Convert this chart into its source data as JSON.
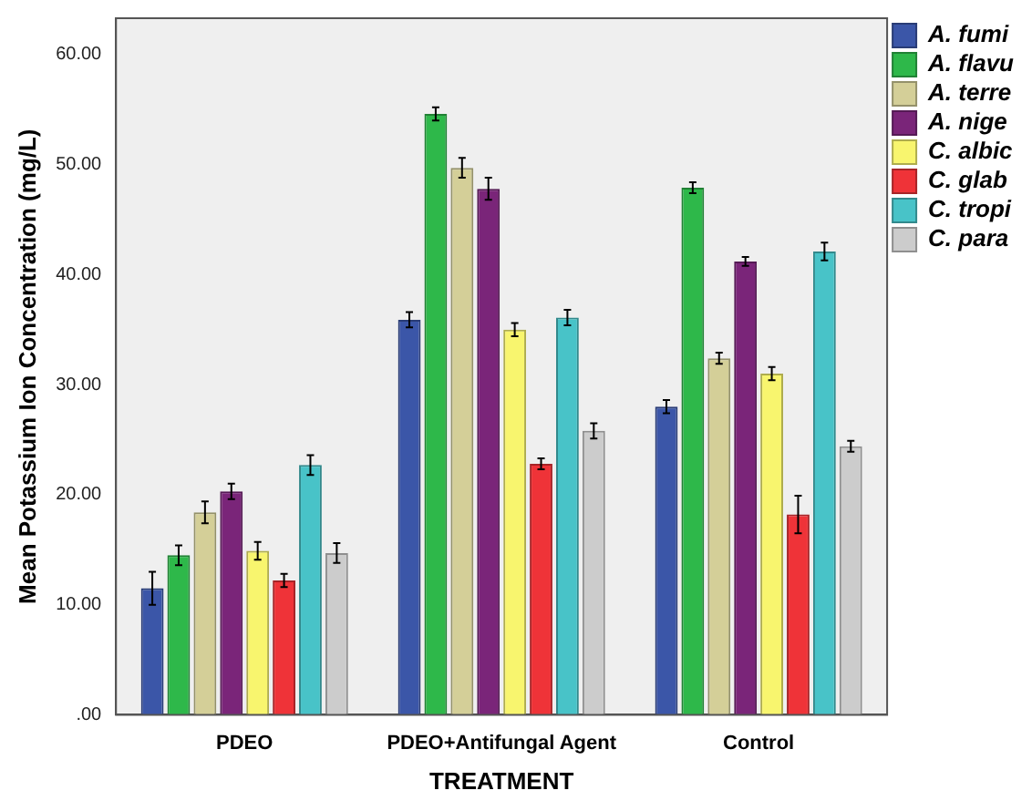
{
  "chart_data": {
    "type": "bar",
    "xlabel": "TREATMENT",
    "ylabel": "Mean Potassium Ion Concentration (mg/L)",
    "categories": [
      "PDEO",
      "PDEO+Antifungal Agent",
      "Control"
    ],
    "series": [
      {
        "name": "A. fumi",
        "color": "#3b56a8",
        "values": [
          11.5,
          35.9,
          28.0
        ],
        "errors": [
          1.5,
          0.7,
          0.6
        ]
      },
      {
        "name": "A. flavu",
        "color": "#2eb84a",
        "values": [
          14.5,
          54.6,
          47.9
        ],
        "errors": [
          0.9,
          0.6,
          0.5
        ]
      },
      {
        "name": "A. terre",
        "color": "#d4cf98",
        "values": [
          18.4,
          49.7,
          32.4
        ],
        "errors": [
          1.0,
          0.9,
          0.5
        ]
      },
      {
        "name": "A. nige",
        "color": "#7a2579",
        "values": [
          20.3,
          47.8,
          41.2
        ],
        "errors": [
          0.7,
          1.0,
          0.4
        ]
      },
      {
        "name": "C. albic",
        "color": "#f8f56e",
        "values": [
          14.9,
          35.0,
          31.0
        ],
        "errors": [
          0.8,
          0.6,
          0.6
        ]
      },
      {
        "name": "C. glab",
        "color": "#ef3338",
        "values": [
          12.2,
          22.8,
          18.2
        ],
        "errors": [
          0.6,
          0.5,
          1.7
        ]
      },
      {
        "name": "C. tropi",
        "color": "#48c3c8",
        "values": [
          22.7,
          36.1,
          42.1
        ],
        "errors": [
          0.9,
          0.7,
          0.8
        ]
      },
      {
        "name": "C. para",
        "color": "#cccccc",
        "values": [
          14.7,
          25.8,
          24.4
        ],
        "errors": [
          0.9,
          0.7,
          0.5
        ]
      }
    ],
    "ylim": [
      0,
      63.3
    ],
    "yticks": [
      {
        "value": 0,
        "label": ".00"
      },
      {
        "value": 10,
        "label": "10.00"
      },
      {
        "value": 20,
        "label": "20.00"
      },
      {
        "value": 30,
        "label": "30.00"
      },
      {
        "value": 40,
        "label": "40.00"
      },
      {
        "value": 50,
        "label": "50.00"
      },
      {
        "value": 60,
        "label": "60.00"
      }
    ],
    "grid": false,
    "legend": "top right"
  }
}
